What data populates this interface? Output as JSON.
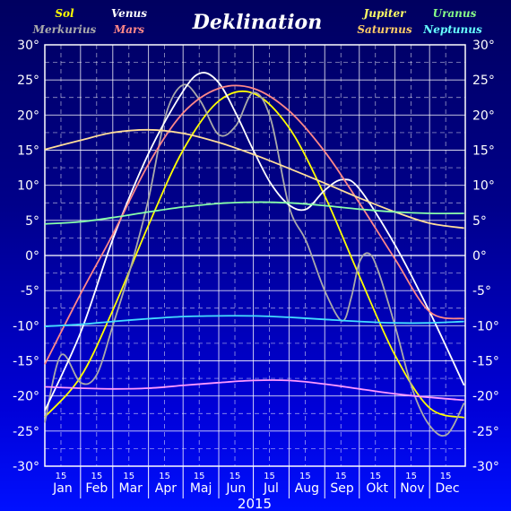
{
  "chart_data": {
    "type": "line",
    "title": "Deklination",
    "xlabel": "2015",
    "months": [
      "Jan",
      "Feb",
      "Mar",
      "Apr",
      "Maj",
      "Jun",
      "Jul",
      "Aug",
      "Sep",
      "Okt",
      "Nov",
      "Dec"
    ],
    "mid_tick_label": "15",
    "ylim": [
      -30,
      30
    ],
    "yticks": [
      -30,
      -25,
      -20,
      -15,
      -10,
      -5,
      0,
      5,
      10,
      15,
      20,
      25,
      30
    ],
    "ytick_labels": [
      "-30°",
      "-25°",
      "-20°",
      "-15°",
      "-10°",
      "-5°",
      "0°",
      "5°",
      "10°",
      "15°",
      "20°",
      "25°",
      "30°"
    ],
    "grid": true,
    "legend": {
      "left": [
        {
          "name": "Sol",
          "color": "#ffff00"
        },
        {
          "name": "Merkurius",
          "color": "#aaaaaa"
        }
      ],
      "center": [
        {
          "name": "Venus",
          "color": "#ffffff"
        },
        {
          "name": "Mars",
          "color": "#ff8888"
        }
      ],
      "right": [
        {
          "name": "Jupiter",
          "color": "#ffff66"
        },
        {
          "name": "Uranus",
          "color": "#88ff88"
        },
        {
          "name": "Saturnus",
          "color": "#ffcc66"
        },
        {
          "name": "Neptunus",
          "color": "#66ffff"
        }
      ]
    },
    "series": [
      {
        "name": "Sol",
        "color": "#ffff00",
        "x": [
          1,
          32,
          60,
          91,
          121,
          152,
          182,
          213,
          244,
          274,
          305,
          335,
          365
        ],
        "y": [
          -23.0,
          -17.3,
          -7.8,
          4.3,
          15.0,
          22.0,
          23.1,
          18.2,
          8.5,
          -2.9,
          -14.2,
          -21.7,
          -23.1
        ]
      },
      {
        "name": "Merkurius",
        "color": "#aaaaaa",
        "x": [
          1,
          15,
          32,
          46,
          60,
          75,
          91,
          106,
          121,
          136,
          152,
          167,
          182,
          197,
          213,
          228,
          244,
          259,
          267,
          274,
          282,
          290,
          305,
          320,
          335,
          350,
          365
        ],
        "y": [
          -23.8,
          -14.2,
          -18.1,
          -17.0,
          -10.0,
          -2.0,
          8.0,
          20.0,
          24.3,
          22.0,
          17.2,
          18.5,
          23.2,
          19.5,
          7.0,
          2.0,
          -5.0,
          -9.3,
          -6.0,
          -1.0,
          0.3,
          -2.0,
          -10.0,
          -19.0,
          -24.2,
          -25.5,
          -21.0
        ]
      },
      {
        "name": "Venus",
        "color": "#ffffff",
        "x": [
          1,
          32,
          60,
          91,
          121,
          137,
          152,
          167,
          182,
          197,
          213,
          228,
          244,
          259,
          274,
          305,
          335,
          365
        ],
        "y": [
          -22.1,
          -11.0,
          2.3,
          14.5,
          23.4,
          26.0,
          24.6,
          20.2,
          15.0,
          10.3,
          7.2,
          6.6,
          9.3,
          10.8,
          9.5,
          1.5,
          -8.0,
          -18.5
        ]
      },
      {
        "name": "Mars",
        "color": "#ff8888",
        "x": [
          1,
          32,
          60,
          91,
          121,
          152,
          182,
          213,
          244,
          274,
          305,
          335,
          365
        ],
        "y": [
          -15.5,
          -5.5,
          3.0,
          13.0,
          20.3,
          23.8,
          23.8,
          20.6,
          14.8,
          7.5,
          -0.5,
          -8.0,
          -9.0
        ]
      },
      {
        "name": "Jupiter",
        "color": "#ffdd99",
        "x": [
          1,
          32,
          60,
          91,
          121,
          152,
          182,
          213,
          244,
          274,
          305,
          335,
          365
        ],
        "y": [
          15.1,
          16.4,
          17.5,
          17.9,
          17.4,
          16.1,
          14.4,
          12.4,
          10.3,
          8.2,
          6.2,
          4.6,
          3.9
        ]
      },
      {
        "name": "Saturnus",
        "color": "#ff99ff",
        "x": [
          1,
          32,
          60,
          91,
          121,
          152,
          182,
          213,
          244,
          274,
          305,
          335,
          365
        ],
        "y": [
          -18.7,
          -18.9,
          -19.0,
          -18.9,
          -18.5,
          -18.1,
          -17.8,
          -17.8,
          -18.3,
          -19.0,
          -19.7,
          -20.2,
          -20.6
        ]
      },
      {
        "name": "Uranus",
        "color": "#88ffaa",
        "x": [
          1,
          32,
          60,
          91,
          121,
          152,
          182,
          213,
          244,
          274,
          305,
          335,
          365
        ],
        "y": [
          4.5,
          4.8,
          5.4,
          6.2,
          6.9,
          7.4,
          7.6,
          7.5,
          7.1,
          6.6,
          6.2,
          6.0,
          6.0
        ]
      },
      {
        "name": "Neptunus",
        "color": "#44ddff",
        "x": [
          1,
          32,
          60,
          91,
          121,
          152,
          182,
          213,
          244,
          274,
          305,
          335,
          365
        ],
        "y": [
          -10.1,
          -9.8,
          -9.4,
          -9.0,
          -8.7,
          -8.6,
          -8.6,
          -8.8,
          -9.1,
          -9.4,
          -9.6,
          -9.6,
          -9.4
        ]
      }
    ]
  }
}
